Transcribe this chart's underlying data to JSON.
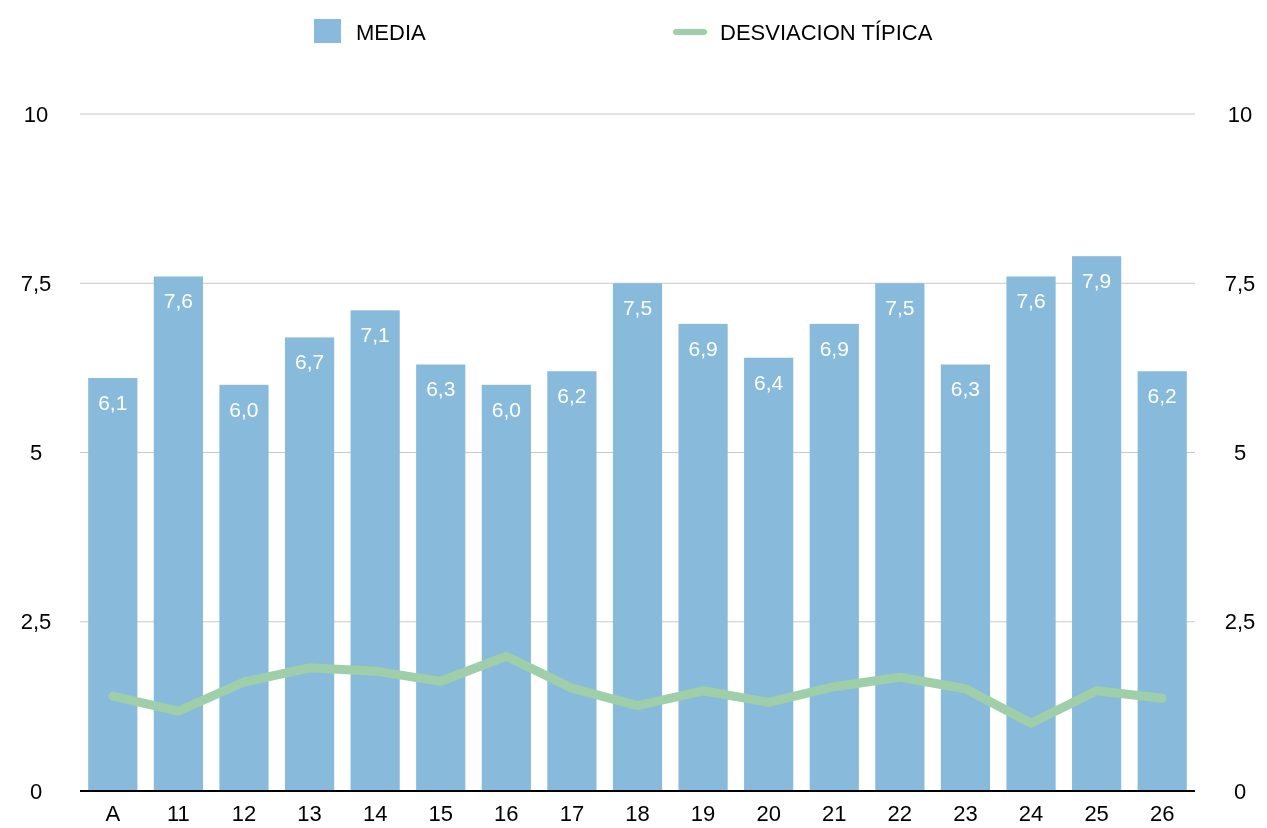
{
  "chart_data": {
    "type": "bar",
    "categories": [
      "A",
      "11",
      "12",
      "13",
      "14",
      "15",
      "16",
      "17",
      "18",
      "19",
      "20",
      "21",
      "22",
      "23",
      "24",
      "25",
      "26"
    ],
    "series": [
      {
        "name": "MEDIA",
        "color": "#88bbdb",
        "values": [
          6.1,
          7.6,
          6.0,
          6.7,
          7.1,
          6.3,
          6.0,
          6.2,
          7.5,
          6.9,
          6.4,
          6.9,
          7.5,
          6.3,
          7.6,
          7.9,
          6.2
        ],
        "value_labels": [
          "6,1",
          "7,6",
          "6,0",
          "6,7",
          "7,1",
          "6,3",
          "6,0",
          "6,2",
          "7,5",
          "6,9",
          "6,4",
          "6,9",
          "7,5",
          "6,3",
          "7,6",
          "7,9",
          "6,2"
        ]
      },
      {
        "name": "DESVIACION TÍPICA",
        "type": "line",
        "color": "#9ecfa8",
        "values": [
          1.4,
          1.18,
          1.61,
          1.82,
          1.77,
          1.62,
          1.99,
          1.52,
          1.26,
          1.48,
          1.31,
          1.54,
          1.68,
          1.51,
          1.0,
          1.48,
          1.37
        ]
      }
    ],
    "ylim": [
      0,
      10
    ],
    "yticks": [
      0,
      {
        "value": 2.5,
        "label": "2,5"
      },
      5,
      {
        "value": 7.5,
        "label": "7,5"
      },
      10
    ],
    "y2lim": [
      0,
      10
    ],
    "y2ticks": [
      0,
      {
        "value": 2.5,
        "label": "2,5"
      },
      5,
      {
        "value": 7.5,
        "label": "7,5"
      },
      10
    ],
    "grid": "y",
    "legend": "top",
    "marker": "none",
    "line_style": "solid"
  }
}
